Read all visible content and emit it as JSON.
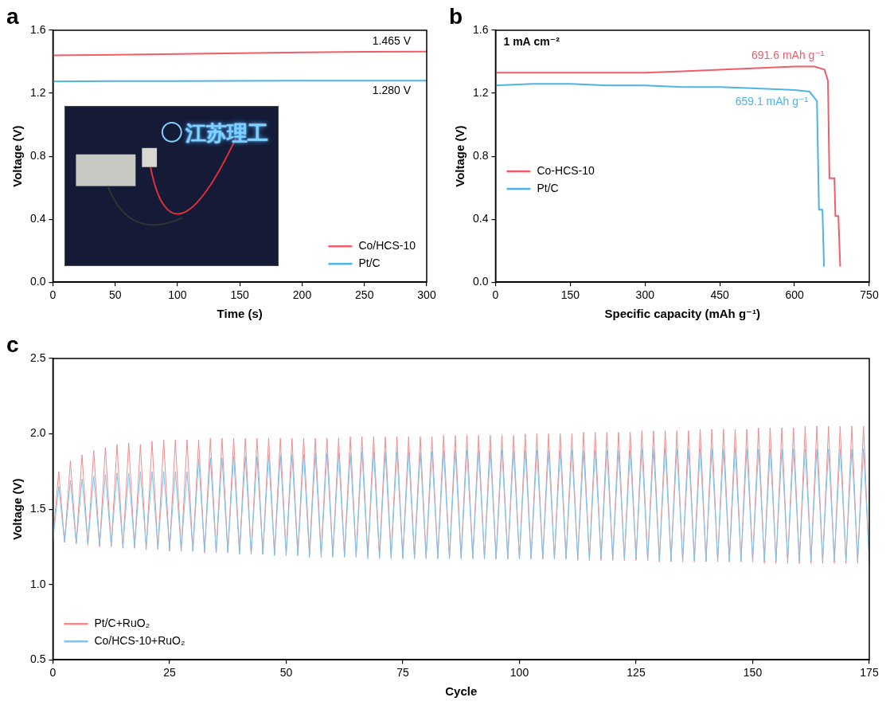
{
  "chart_data": [
    {
      "panel": "a",
      "type": "line",
      "x_label": "Time (s)",
      "y_label": "Voltage (V)",
      "xlim": [
        0,
        300
      ],
      "xticks": [
        0,
        50,
        100,
        150,
        200,
        250,
        300
      ],
      "ylim": [
        0,
        1.6
      ],
      "yticks": [
        {
          "value": 0,
          "label": "0.0"
        },
        0.4,
        0.8,
        1.2,
        1.6
      ],
      "grid": false,
      "legend": "lower right",
      "series": [
        {
          "name": "Co/HCS-10",
          "color": "#f25c6a",
          "x": [
            0,
            50,
            100,
            150,
            200,
            250,
            300
          ],
          "values": [
            1.44,
            1.445,
            1.45,
            1.455,
            1.46,
            1.463,
            1.465
          ]
        },
        {
          "name": "Pt/C",
          "color": "#4fb3e6",
          "x": [
            0,
            50,
            100,
            150,
            200,
            250,
            300
          ],
          "values": [
            1.275,
            1.277,
            1.278,
            1.279,
            1.28,
            1.28,
            1.28
          ]
        }
      ],
      "annotations": [
        {
          "text": "1.465 V",
          "series": "Co/HCS-10"
        },
        {
          "text": "1.280 V",
          "series": "Pt/C"
        }
      ],
      "inset_text": "江苏理工"
    },
    {
      "panel": "b",
      "type": "line",
      "x_label": "Specific capacity (mAh g⁻¹)",
      "y_label": "Voltage (V)",
      "xlim": [
        0,
        750
      ],
      "xticks": [
        0,
        150,
        300,
        450,
        600,
        750
      ],
      "ylim": [
        0,
        1.6
      ],
      "yticks": [
        {
          "value": 0,
          "label": "0.0"
        },
        0.4,
        0.8,
        1.2,
        1.6
      ],
      "grid": false,
      "legend": "center left",
      "series": [
        {
          "name": "Co-HCS-10",
          "color": "#f25c6a",
          "x": [
            0,
            75,
            150,
            225,
            300,
            375,
            450,
            525,
            600,
            640,
            660,
            667,
            670,
            680,
            682,
            688,
            691.6
          ],
          "values": [
            1.33,
            1.33,
            1.33,
            1.33,
            1.33,
            1.34,
            1.35,
            1.36,
            1.37,
            1.37,
            1.35,
            1.28,
            0.66,
            0.66,
            0.42,
            0.42,
            0.1
          ]
        },
        {
          "name": "Pt/C",
          "color": "#4fb3e6",
          "x": [
            0,
            75,
            150,
            225,
            300,
            375,
            450,
            525,
            600,
            630,
            645,
            649,
            656,
            659.1
          ],
          "values": [
            1.25,
            1.26,
            1.26,
            1.25,
            1.25,
            1.24,
            1.24,
            1.23,
            1.22,
            1.21,
            1.15,
            0.46,
            0.46,
            0.1
          ]
        }
      ],
      "annotations": [
        {
          "text": "1 mA cm⁻²"
        },
        {
          "text": "691.6 mAh g⁻¹",
          "series": "Co-HCS-10",
          "color": "#f25c6a"
        },
        {
          "text": "659.1 mAh g⁻¹",
          "series": "Pt/C",
          "color": "#4fb3e6"
        }
      ]
    },
    {
      "panel": "c",
      "type": "line",
      "x_label": "Cycle",
      "y_label": "Voltage (V)",
      "xlim": [
        0,
        175
      ],
      "xticks": [
        0,
        25,
        50,
        75,
        100,
        125,
        150,
        175
      ],
      "ylim": [
        0.5,
        2.5
      ],
      "yticks": [
        0.5,
        {
          "value": 1,
          "label": "1.0"
        },
        1.5,
        {
          "value": 2,
          "label": "2.0"
        },
        2.5
      ],
      "grid": false,
      "legend": "lower left",
      "x": [
        0,
        1.25,
        2.5,
        3.75,
        5,
        6.25,
        7.5,
        8.75,
        10,
        11.25,
        12.5,
        13.75,
        15,
        16.25,
        17.5,
        18.75,
        20,
        21.25,
        22.5,
        23.75,
        25,
        26.25,
        27.5,
        28.75,
        30,
        31.25,
        32.5,
        33.75,
        35,
        36.25,
        37.5,
        38.75,
        40,
        41.25,
        42.5,
        43.75,
        45,
        46.25,
        47.5,
        48.75,
        50,
        51.25,
        52.5,
        53.75,
        55,
        56.25,
        57.5,
        58.75,
        60,
        61.25,
        62.5,
        63.75,
        65,
        66.25,
        67.5,
        68.75,
        70,
        71.25,
        72.5,
        73.75,
        75,
        76.25,
        77.5,
        78.75,
        80,
        81.25,
        82.5,
        83.75,
        85,
        86.25,
        87.5,
        88.75,
        90,
        91.25,
        92.5,
        93.75,
        95,
        96.25,
        97.5,
        98.75,
        100,
        101.25,
        102.5,
        103.75,
        105,
        106.25,
        107.5,
        108.75,
        110,
        111.25,
        112.5,
        113.75,
        115,
        116.25,
        117.5,
        118.75,
        120,
        121.25,
        122.5,
        123.75,
        125,
        126.25,
        127.5,
        128.75,
        130,
        131.25,
        132.5,
        133.75,
        135,
        136.25,
        137.5,
        138.75,
        140,
        141.25,
        142.5,
        143.75,
        145,
        146.25,
        147.5,
        148.75,
        150,
        151.25,
        152.5,
        153.75,
        155,
        156.25,
        157.5,
        158.75,
        160,
        161.25,
        162.5,
        163.75,
        165,
        166.25,
        167.5,
        168.75,
        170,
        171.25,
        172.5,
        173.75,
        175
      ],
      "series": [
        {
          "name": "Pt/C+RuO₂",
          "color": "#f28c8c",
          "values": [
            1.3,
            1.75,
            1.28,
            1.82,
            1.27,
            1.86,
            1.26,
            1.89,
            1.25,
            1.91,
            1.25,
            1.93,
            1.24,
            1.94,
            1.24,
            1.93,
            1.23,
            1.95,
            1.23,
            1.96,
            1.22,
            1.96,
            1.22,
            1.96,
            1.22,
            1.96,
            1.21,
            1.97,
            1.21,
            1.97,
            1.21,
            1.97,
            1.21,
            1.97,
            1.2,
            1.97,
            1.2,
            1.97,
            1.2,
            1.97,
            1.2,
            1.97,
            1.2,
            1.97,
            1.2,
            1.97,
            1.2,
            1.97,
            1.19,
            1.97,
            1.19,
            1.98,
            1.19,
            1.98,
            1.19,
            1.98,
            1.19,
            1.98,
            1.19,
            1.98,
            1.18,
            1.98,
            1.18,
            1.98,
            1.18,
            1.98,
            1.18,
            1.99,
            1.18,
            1.99,
            1.18,
            1.99,
            1.18,
            1.99,
            1.17,
            1.99,
            1.17,
            1.99,
            1.17,
            1.99,
            1.17,
            2.0,
            1.17,
            2.0,
            1.17,
            2.0,
            1.17,
            2.0,
            1.17,
            2.0,
            1.16,
            2.01,
            1.16,
            2.01,
            1.16,
            2.01,
            1.16,
            2.01,
            1.16,
            2.01,
            1.16,
            2.02,
            1.16,
            2.02,
            1.15,
            2.02,
            1.15,
            2.02,
            1.15,
            2.02,
            1.15,
            2.03,
            1.15,
            2.03,
            1.15,
            2.03,
            1.15,
            2.03,
            1.15,
            2.03,
            1.15,
            2.04,
            1.14,
            2.04,
            1.14,
            2.04,
            1.14,
            2.04,
            1.14,
            2.05,
            1.14,
            2.05,
            1.14,
            2.05,
            1.14,
            2.05,
            1.14,
            2.05,
            1.14,
            2.05,
            1.14
          ]
        },
        {
          "name": "Co/HCS-10+RuO₂",
          "color": "#7ec3ee",
          "values": [
            1.29,
            1.65,
            1.28,
            1.69,
            1.27,
            1.7,
            1.27,
            1.72,
            1.26,
            1.73,
            1.26,
            1.74,
            1.25,
            1.74,
            1.25,
            1.75,
            1.25,
            1.75,
            1.24,
            1.75,
            1.24,
            1.75,
            1.23,
            1.75,
            1.22,
            1.83,
            1.22,
            1.84,
            1.21,
            1.84,
            1.21,
            1.85,
            1.2,
            1.85,
            1.2,
            1.85,
            1.2,
            1.86,
            1.19,
            1.86,
            1.19,
            1.86,
            1.19,
            1.86,
            1.18,
            1.87,
            1.18,
            1.87,
            1.18,
            1.87,
            1.18,
            1.87,
            1.18,
            1.88,
            1.17,
            1.88,
            1.17,
            1.88,
            1.17,
            1.88,
            1.17,
            1.88,
            1.17,
            1.88,
            1.17,
            1.88,
            1.17,
            1.89,
            1.17,
            1.89,
            1.17,
            1.89,
            1.17,
            1.89,
            1.17,
            1.89,
            1.17,
            1.89,
            1.17,
            1.89,
            1.17,
            1.89,
            1.17,
            1.89,
            1.17,
            1.89,
            1.17,
            1.89,
            1.17,
            1.89,
            1.17,
            1.89,
            1.17,
            1.89,
            1.17,
            1.89,
            1.17,
            1.89,
            1.17,
            1.89,
            1.17,
            1.9,
            1.16,
            1.9,
            1.16,
            1.9,
            1.16,
            1.9,
            1.16,
            1.9,
            1.16,
            1.9,
            1.16,
            1.9,
            1.16,
            1.9,
            1.16,
            1.9,
            1.16,
            1.9,
            1.16,
            1.9,
            1.16,
            1.9,
            1.16,
            1.9,
            1.16,
            1.9,
            1.16,
            1.9,
            1.16,
            1.9,
            1.16,
            1.9,
            1.16,
            1.9,
            1.16,
            1.9,
            1.16,
            1.9,
            1.16
          ]
        }
      ]
    }
  ]
}
